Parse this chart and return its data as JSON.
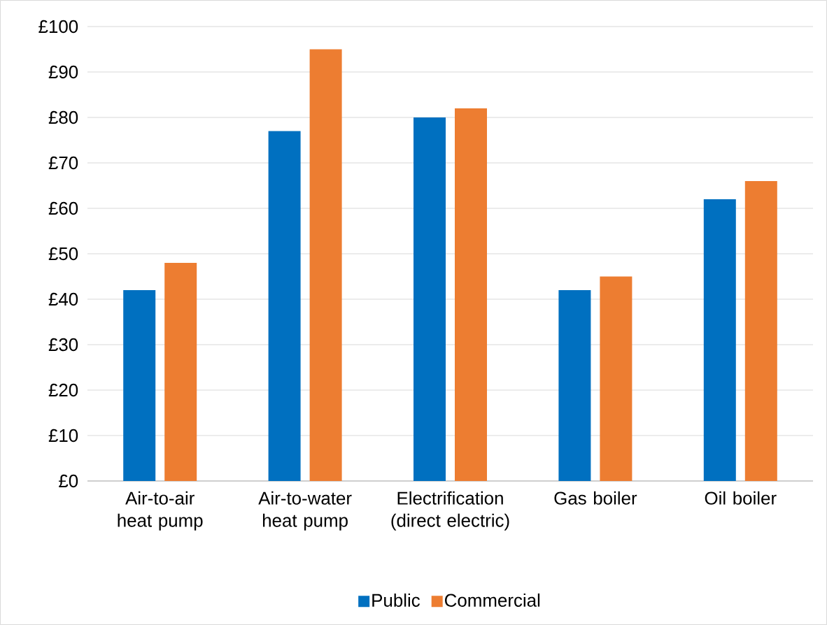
{
  "chart_data": {
    "type": "bar",
    "categories": [
      "Air-to-air heat pump",
      "Air-to-water heat pump",
      "Electrification (direct electric)",
      "Gas boiler",
      "Oil boiler"
    ],
    "series": [
      {
        "name": "Public",
        "color": "#0070c0",
        "values": [
          42,
          77,
          80,
          42,
          62
        ]
      },
      {
        "name": "Commercial",
        "color": "#ed7d31",
        "values": [
          48,
          95,
          82,
          45,
          66
        ]
      }
    ],
    "ylim": [
      0,
      100
    ],
    "yticks": [
      {
        "value": 0,
        "label": "£0"
      },
      {
        "value": 10,
        "label": "£10"
      },
      {
        "value": 20,
        "label": "£20"
      },
      {
        "value": 30,
        "label": "£30"
      },
      {
        "value": 40,
        "label": "£40"
      },
      {
        "value": 50,
        "label": "£50"
      },
      {
        "value": 60,
        "label": "£60"
      },
      {
        "value": 70,
        "label": "£70"
      },
      {
        "value": 80,
        "label": "£80"
      },
      {
        "value": 90,
        "label": "£90"
      },
      {
        "value": 100,
        "label": "£100"
      }
    ],
    "grid": "y",
    "legend": "bottom"
  }
}
